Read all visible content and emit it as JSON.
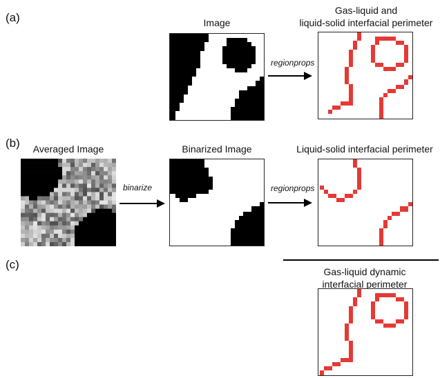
{
  "colors": {
    "ink": "#000000",
    "perimeter": "#e53935",
    "paper": "#ffffff"
  },
  "panel_a": {
    "label": "(a)",
    "image_title": "Image",
    "operation": "regionprops",
    "result_title_line1": "Gas-liquid and",
    "result_title_line2": "liquid-solid interfacial perimeter"
  },
  "panel_b": {
    "label": "(b)",
    "averaged_title": "Averaged Image",
    "binarize_label": "binarize",
    "binarized_title": "Binarized Image",
    "operation": "regionprops",
    "result_title": "Liquid-solid interfacial perimeter"
  },
  "panel_c": {
    "label": "(c)",
    "result_title_line1": "Gas-liquid dynamic",
    "result_title_line2": "interfacial perimeter"
  }
}
